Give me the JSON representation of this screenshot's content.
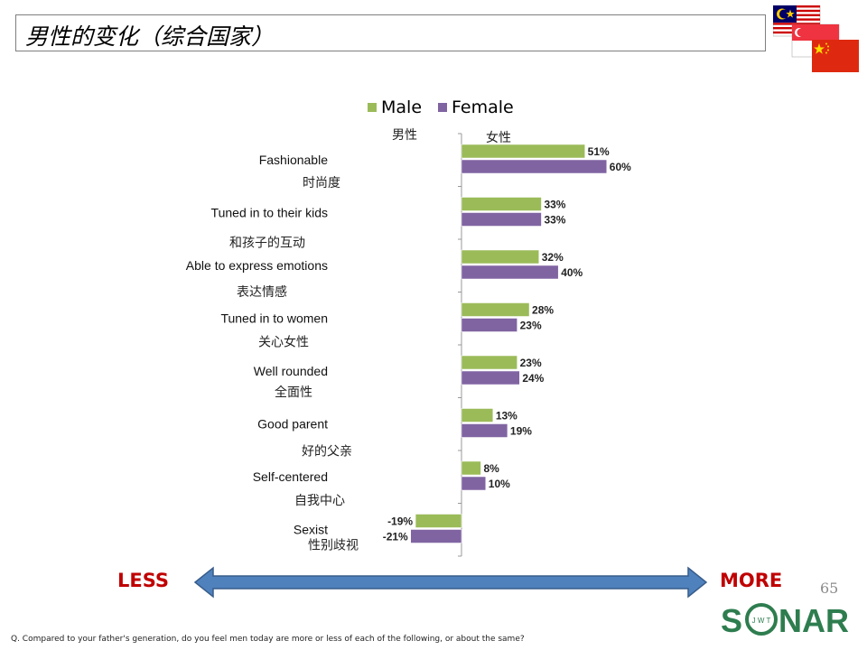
{
  "slide": {
    "title": "男性的变化（综合国家）",
    "page_number": "65",
    "less_label": "LESS",
    "more_label": "MORE",
    "footnote": "Q. Compared to your father's generation, do you feel men today are more or less of each of the following, or about the same?",
    "logo_text_left": "S",
    "logo_text_right": "NAR",
    "logo_inner": "J W T",
    "male_zh": "男性",
    "female_zh": "女性",
    "colors": {
      "title_border": "#7f7f7f",
      "arrow": "#4f81bd",
      "less_more": "#c00000",
      "logo": "#2e7d4f"
    },
    "flags": [
      "malaysia-flag",
      "singapore-flag",
      "china-flag"
    ]
  },
  "chart_data": {
    "type": "bar",
    "orientation": "horizontal",
    "categories": [
      "Fashionable",
      "Tuned in to their kids",
      "Able to express emotions",
      "Tuned in to women",
      "Well rounded",
      "Good parent",
      "Self-centered",
      "Sexist"
    ],
    "categories_zh": [
      "时尚度",
      "和孩子的互动",
      "表达情感",
      "关心女性",
      "全面性",
      "好的父亲",
      "自我中心",
      "性别歧视"
    ],
    "series": [
      {
        "name": "Male",
        "color": "#9bbb59",
        "values": [
          51,
          33,
          32,
          28,
          23,
          13,
          8,
          -19
        ],
        "labels": [
          "51%",
          "33%",
          "32%",
          "28%",
          "23%",
          "13%",
          "8%",
          "-19%"
        ]
      },
      {
        "name": "Female",
        "color": "#8064a2",
        "values": [
          60,
          33,
          40,
          23,
          24,
          19,
          10,
          -21
        ],
        "labels": [
          "60%",
          "33%",
          "40%",
          "23%",
          "24%",
          "19%",
          "10%",
          "-21%"
        ]
      }
    ],
    "legend_position": "top",
    "grid": false
  }
}
